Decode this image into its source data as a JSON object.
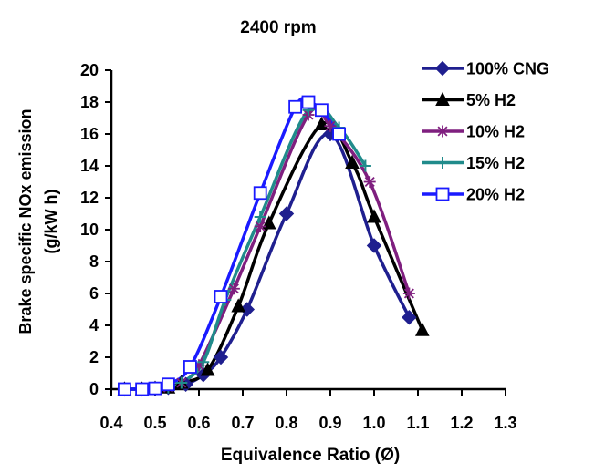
{
  "chart_data": {
    "type": "scatter",
    "title": "2400 rpm",
    "xlabel": "Equivalence Ratio (Ø)",
    "ylabel": "Brake specific NOx emission",
    "ylabel_unit": "(g/kW h)",
    "xlim": [
      0.4,
      1.3
    ],
    "ylim": [
      0,
      20
    ],
    "x_ticks": [
      "0.4",
      "0.5",
      "0.6",
      "0.7",
      "0.8",
      "0.9",
      "1.0",
      "1.1",
      "1.2",
      "1.3"
    ],
    "y_ticks": [
      "0",
      "2",
      "4",
      "6",
      "8",
      "10",
      "12",
      "14",
      "16",
      "18",
      "20"
    ],
    "grid": false,
    "legend_position": "top-right",
    "series": [
      {
        "name": "100% CNG",
        "color": "#1f1f8f",
        "marker": "diamond",
        "x": [
          0.43,
          0.47,
          0.5,
          0.53,
          0.57,
          0.61,
          0.65,
          0.71,
          0.8,
          0.9,
          1.0,
          1.08
        ],
        "y": [
          0.0,
          0.0,
          0.05,
          0.1,
          0.3,
          0.9,
          2.0,
          5.0,
          11.0,
          16.0,
          9.0,
          4.5
        ]
      },
      {
        "name": "5% H2",
        "color": "#000000",
        "marker": "triangle",
        "x": [
          0.43,
          0.47,
          0.5,
          0.53,
          0.56,
          0.62,
          0.69,
          0.76,
          0.88,
          0.95,
          1.0,
          1.11
        ],
        "y": [
          0.0,
          0.0,
          0.05,
          0.1,
          0.4,
          1.2,
          5.2,
          10.4,
          16.6,
          14.2,
          10.8,
          3.7
        ]
      },
      {
        "name": "10% H2",
        "color": "#7f1f7f",
        "marker": "star",
        "x": [
          0.43,
          0.47,
          0.5,
          0.53,
          0.56,
          0.6,
          0.68,
          0.74,
          0.85,
          0.9,
          0.99,
          1.08
        ],
        "y": [
          0.0,
          0.0,
          0.05,
          0.1,
          0.4,
          1.5,
          6.3,
          10.2,
          17.2,
          16.5,
          13.0,
          6.0
        ]
      },
      {
        "name": "15% H2",
        "color": "#208b8b",
        "marker": "plus",
        "x": [
          0.43,
          0.47,
          0.5,
          0.53,
          0.56,
          0.61,
          0.66,
          0.74,
          0.85,
          0.92,
          0.98
        ],
        "y": [
          0.0,
          0.0,
          0.05,
          0.1,
          0.4,
          1.7,
          5.6,
          10.8,
          17.5,
          16.4,
          14.0
        ]
      },
      {
        "name": "20% H2",
        "color": "#1a1aff",
        "marker": "square",
        "x": [
          0.43,
          0.47,
          0.5,
          0.53,
          0.58,
          0.65,
          0.74,
          0.82,
          0.85,
          0.88,
          0.92
        ],
        "y": [
          0.0,
          0.0,
          0.05,
          0.3,
          1.4,
          5.8,
          12.3,
          17.7,
          18.0,
          17.5,
          16.0
        ]
      }
    ]
  }
}
